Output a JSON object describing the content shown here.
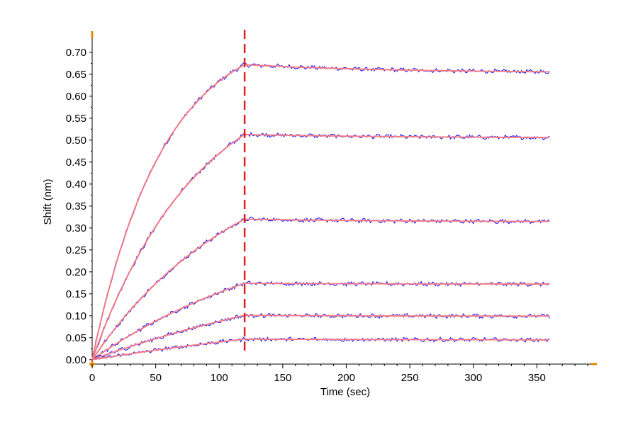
{
  "chart_data": {
    "type": "line",
    "title": "",
    "xlabel": "Time (sec)",
    "ylabel": "Shift (nm)",
    "xlim": [
      0,
      395
    ],
    "ylim": [
      -0.01,
      0.745
    ],
    "x_ticks": [
      0,
      50,
      100,
      150,
      200,
      250,
      300,
      350
    ],
    "x_tick_labels": [
      "0",
      "50",
      "100",
      "150",
      "200",
      "250",
      "300",
      "350"
    ],
    "y_ticks": [
      0.0,
      0.05,
      0.1,
      0.15,
      0.2,
      0.25,
      0.3,
      0.35,
      0.4,
      0.45,
      0.5,
      0.55,
      0.6,
      0.65,
      0.7
    ],
    "y_tick_labels": [
      "0.00",
      "0.05",
      "0.10",
      "0.15",
      "0.20",
      "0.25",
      "0.30",
      "0.35",
      "0.40",
      "0.45",
      "0.50",
      "0.55",
      "0.60",
      "0.65",
      "0.70"
    ],
    "grid": false,
    "legend": "none",
    "association_end": 120,
    "dissociation_end": 360,
    "colors": {
      "measured": "#1a1aff",
      "fit": "#ff7a7a",
      "marker_line": "#e02020",
      "axis_ends": "#e08a00"
    },
    "series": [
      {
        "role": "curve",
        "plateau_at_120": 0.672,
        "end_at_360": 0.653,
        "association_rate": 0.018
      },
      {
        "role": "curve",
        "plateau_at_120": 0.513,
        "end_at_360": 0.505,
        "association_rate": 0.012
      },
      {
        "role": "curve",
        "plateau_at_120": 0.32,
        "end_at_360": 0.314,
        "association_rate": 0.0085
      },
      {
        "role": "curve",
        "plateau_at_120": 0.174,
        "end_at_360": 0.172,
        "association_rate": 0.006
      },
      {
        "role": "curve",
        "plateau_at_120": 0.101,
        "end_at_360": 0.099,
        "association_rate": 0.004
      },
      {
        "role": "curve",
        "plateau_at_120": 0.047,
        "end_at_360": 0.045,
        "association_rate": 0.003
      }
    ]
  }
}
